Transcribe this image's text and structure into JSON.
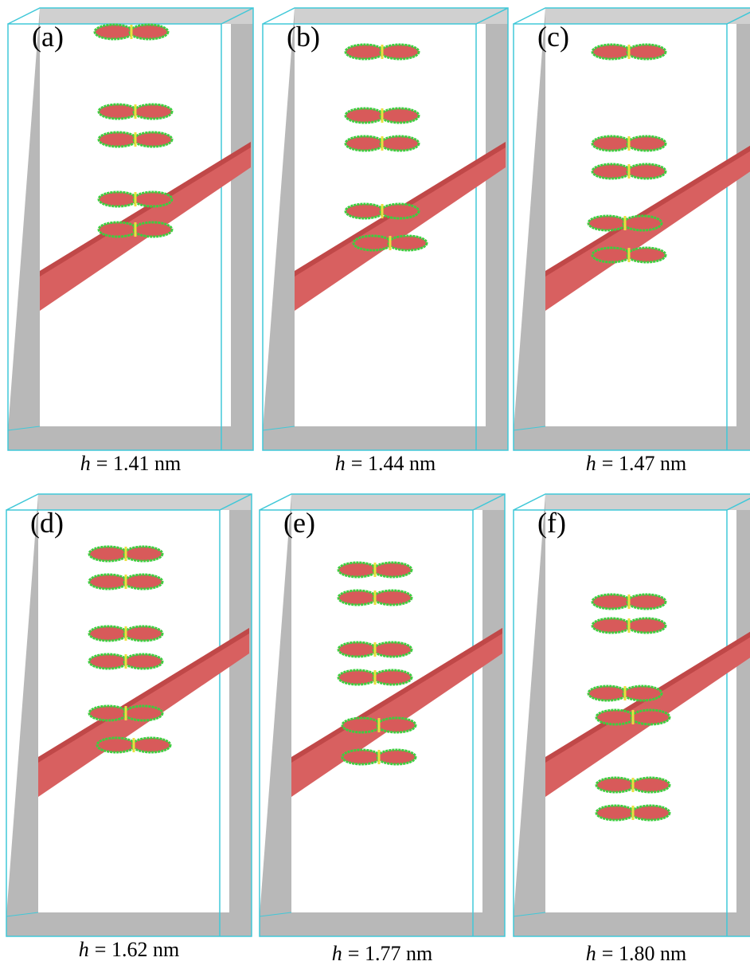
{
  "panels": [
    {
      "label": "(a)",
      "variable": "h",
      "text": "= 1.41 nm"
    },
    {
      "label": "(b)",
      "variable": "h",
      "text": "= 1.44 nm"
    },
    {
      "label": "(c)",
      "variable": "h",
      "text": "= 1.47 nm"
    },
    {
      "label": "(d)",
      "variable": "h",
      "text": "= 1.62 nm"
    },
    {
      "label": "(e)",
      "variable": "h",
      "text": "= 1.77 nm"
    },
    {
      "label": "(f)",
      "variable": "h",
      "text": "= 1.80 nm"
    }
  ]
}
